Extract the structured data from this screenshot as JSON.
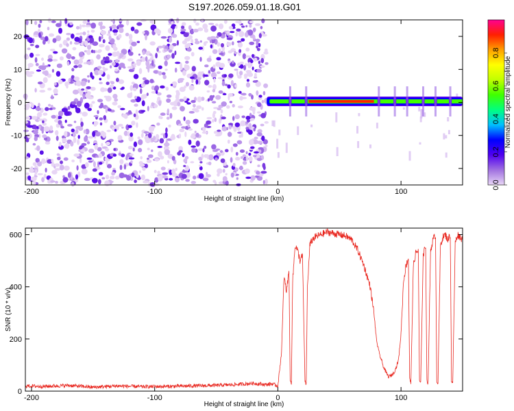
{
  "figure_title": "S197.2026.059.01.18.G01",
  "chart_data": [
    {
      "type": "heatmap",
      "title": "S197.2026.059.01.18.G01",
      "xlabel": "Height of straight line (km)",
      "ylabel": "Frequency (Hz)",
      "xlim": [
        -205,
        150
      ],
      "ylim": [
        -25,
        25
      ],
      "xticks": [
        -200,
        -100,
        0,
        100
      ],
      "yticks": [
        -20,
        -10,
        0,
        10,
        20
      ],
      "colorbar": {
        "label": "Normalized spectral amplitude",
        "range": [
          0.0,
          1.0
        ],
        "ticks": [
          0.0,
          0.2,
          0.4,
          0.6,
          0.8
        ],
        "tick_labels": [
          "0.0",
          "0.2",
          "0.4",
          "0.6",
          "0.8"
        ],
        "colormap": [
          "#e8d6f5",
          "#a070e0",
          "#5000f0",
          "#0000ff",
          "#00c0ff",
          "#00ff80",
          "#40ff00",
          "#c0ff00",
          "#ffff00",
          "#ffa000",
          "#ff2000",
          "#ff0090"
        ]
      },
      "noise_region_x": [
        -205,
        -9
      ],
      "signal_track": {
        "x_start": -9,
        "x_end": 150,
        "frequency_hz": 0.3,
        "amplitude_peak": 0.9,
        "gaps_x": [
          10,
          23,
          82,
          95,
          105,
          118,
          128,
          140
        ]
      },
      "grid": false
    },
    {
      "type": "line",
      "xlabel": "Height of straight line (km)",
      "ylabel": "SNR (10 * v/v)",
      "xlim": [
        -205,
        150
      ],
      "ylim": [
        0,
        625
      ],
      "xticks": [
        -200,
        -100,
        0,
        100
      ],
      "yticks": [
        0,
        200,
        400,
        600
      ],
      "line_color": "#e8241c",
      "series": [
        {
          "name": "SNR",
          "x": [
            -205,
            -190,
            -170,
            -150,
            -130,
            -110,
            -90,
            -70,
            -50,
            -35,
            -20,
            -10,
            -5,
            0,
            3,
            5,
            7,
            9,
            10,
            11,
            12,
            14,
            16,
            18,
            20,
            22,
            23,
            24,
            26,
            28,
            30,
            35,
            40,
            45,
            50,
            55,
            60,
            65,
            70,
            75,
            78,
            80,
            82,
            84,
            86,
            88,
            90,
            92,
            94,
            96,
            98,
            100,
            102,
            104,
            106,
            107,
            108,
            110,
            112,
            114,
            115,
            116,
            118,
            120,
            121,
            122,
            124,
            126,
            128,
            129,
            130,
            132,
            134,
            136,
            138,
            140,
            141,
            142,
            144,
            146,
            148,
            150
          ],
          "y": [
            20,
            18,
            22,
            15,
            20,
            17,
            18,
            20,
            22,
            25,
            30,
            25,
            28,
            20,
            150,
            440,
            380,
            470,
            40,
            30,
            420,
            560,
            540,
            500,
            520,
            40,
            25,
            400,
            560,
            580,
            590,
            600,
            610,
            605,
            600,
            595,
            580,
            540,
            480,
            400,
            300,
            200,
            150,
            120,
            90,
            70,
            55,
            60,
            70,
            90,
            120,
            220,
            420,
            480,
            510,
            50,
            30,
            480,
            530,
            540,
            40,
            30,
            520,
            560,
            40,
            30,
            540,
            580,
            600,
            40,
            30,
            560,
            590,
            600,
            580,
            600,
            40,
            30,
            570,
            600,
            590,
            580
          ]
        }
      ],
      "grid": false
    }
  ]
}
